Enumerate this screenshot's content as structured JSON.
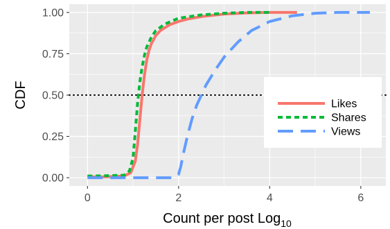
{
  "chart_data": {
    "type": "line",
    "title": "",
    "xlabel": "Count per post Log",
    "xlabel_subscript": "10",
    "ylabel": "CDF",
    "xlim": [
      -0.4,
      6.55
    ],
    "ylim": [
      -0.05,
      1.05
    ],
    "x_ticks": [
      0,
      2,
      4,
      6
    ],
    "x_tick_labels": [
      "0",
      "2",
      "4",
      "6"
    ],
    "y_ticks": [
      0,
      0.25,
      0.5,
      0.75,
      1.0
    ],
    "y_tick_labels": [
      "0.00",
      "0.25",
      "0.50",
      "0.75",
      "1.00"
    ],
    "grid": true,
    "background": "#ebebeb",
    "reference_line": {
      "y": 0.5,
      "style": "dotted",
      "color": "#000000"
    },
    "legend": {
      "position": "right",
      "entries": [
        "Likes",
        "Shares",
        "Views"
      ]
    },
    "series": [
      {
        "name": "Likes",
        "color": "#f8766d",
        "dash": "solid",
        "x": [
          0.0,
          0.4,
          0.8,
          0.95,
          1.05,
          1.1,
          1.15,
          1.2,
          1.25,
          1.3,
          1.35,
          1.4,
          1.5,
          1.6,
          1.8,
          2.0,
          2.2,
          2.5,
          3.0,
          3.5,
          4.0,
          4.6
        ],
        "y": [
          0.005,
          0.006,
          0.01,
          0.03,
          0.1,
          0.2,
          0.35,
          0.5,
          0.62,
          0.71,
          0.77,
          0.81,
          0.86,
          0.89,
          0.925,
          0.945,
          0.96,
          0.975,
          0.99,
          0.997,
          1.0,
          1.0
        ]
      },
      {
        "name": "Shares",
        "color": "#00ba38",
        "dash": "dotted",
        "x": [
          0.0,
          0.4,
          0.8,
          0.92,
          1.0,
          1.05,
          1.1,
          1.15,
          1.2,
          1.25,
          1.3,
          1.4,
          1.5,
          1.7,
          2.0,
          2.5,
          3.0,
          3.5,
          4.0
        ],
        "y": [
          0.01,
          0.012,
          0.015,
          0.04,
          0.12,
          0.28,
          0.45,
          0.58,
          0.67,
          0.74,
          0.79,
          0.85,
          0.89,
          0.93,
          0.965,
          0.985,
          0.995,
          1.0,
          1.0
        ]
      },
      {
        "name": "Views",
        "color": "#619cff",
        "dash": "dashed",
        "x": [
          0.0,
          0.5,
          1.0,
          1.5,
          1.9,
          2.0,
          2.05,
          2.1,
          2.2,
          2.3,
          2.4,
          2.5,
          2.6,
          2.8,
          3.0,
          3.3,
          3.6,
          4.0,
          4.5,
          5.0,
          5.5,
          6.2
        ],
        "y": [
          0.0,
          0.0,
          0.0,
          0.0,
          0.0,
          0.02,
          0.07,
          0.14,
          0.26,
          0.36,
          0.44,
          0.5,
          0.56,
          0.65,
          0.73,
          0.82,
          0.89,
          0.945,
          0.98,
          0.995,
          1.0,
          1.0
        ]
      }
    ]
  }
}
